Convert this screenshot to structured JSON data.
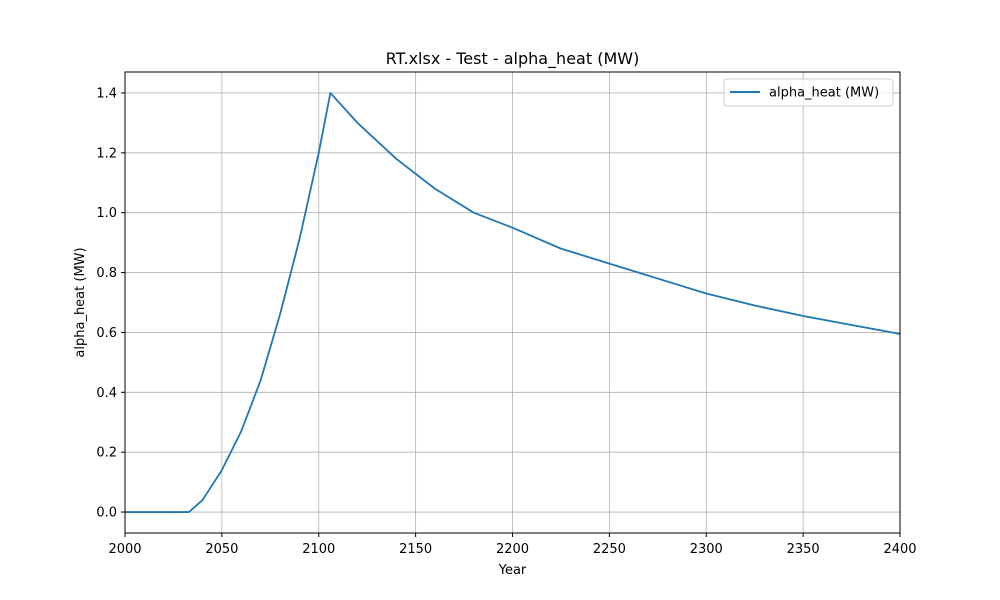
{
  "chart_data": {
    "type": "line",
    "title": "RT.xlsx - Test - alpha_heat (MW)",
    "xlabel": "Year",
    "ylabel": "alpha_heat (MW)",
    "xlim": [
      2000,
      2400
    ],
    "ylim": [
      -0.07,
      1.47
    ],
    "x_ticks": [
      2000,
      2050,
      2100,
      2150,
      2200,
      2250,
      2300,
      2350,
      2400
    ],
    "x_tick_labels": [
      "2000",
      "2050",
      "2100",
      "2150",
      "2200",
      "2250",
      "2300",
      "2350",
      "2400"
    ],
    "y_ticks": [
      0.0,
      0.2,
      0.4,
      0.6,
      0.8,
      1.0,
      1.2,
      1.4
    ],
    "y_tick_labels": [
      "0.0",
      "0.2",
      "0.4",
      "0.6",
      "0.8",
      "1.0",
      "1.2",
      "1.4"
    ],
    "grid": true,
    "legend_position": "top-right",
    "series": [
      {
        "name": "alpha_heat (MW)",
        "color": "#1f77b4",
        "x": [
          2000,
          2010,
          2020,
          2033,
          2040,
          2050,
          2060,
          2070,
          2080,
          2090,
          2100,
          2106,
          2120,
          2140,
          2160,
          2180,
          2200,
          2225,
          2250,
          2275,
          2300,
          2325,
          2350,
          2375,
          2400
        ],
        "y": [
          0.0,
          0.0,
          0.0,
          0.0,
          0.04,
          0.14,
          0.27,
          0.44,
          0.66,
          0.91,
          1.2,
          1.4,
          1.3,
          1.18,
          1.08,
          1.0,
          0.95,
          0.88,
          0.83,
          0.78,
          0.73,
          0.69,
          0.655,
          0.625,
          0.595
        ]
      }
    ]
  }
}
